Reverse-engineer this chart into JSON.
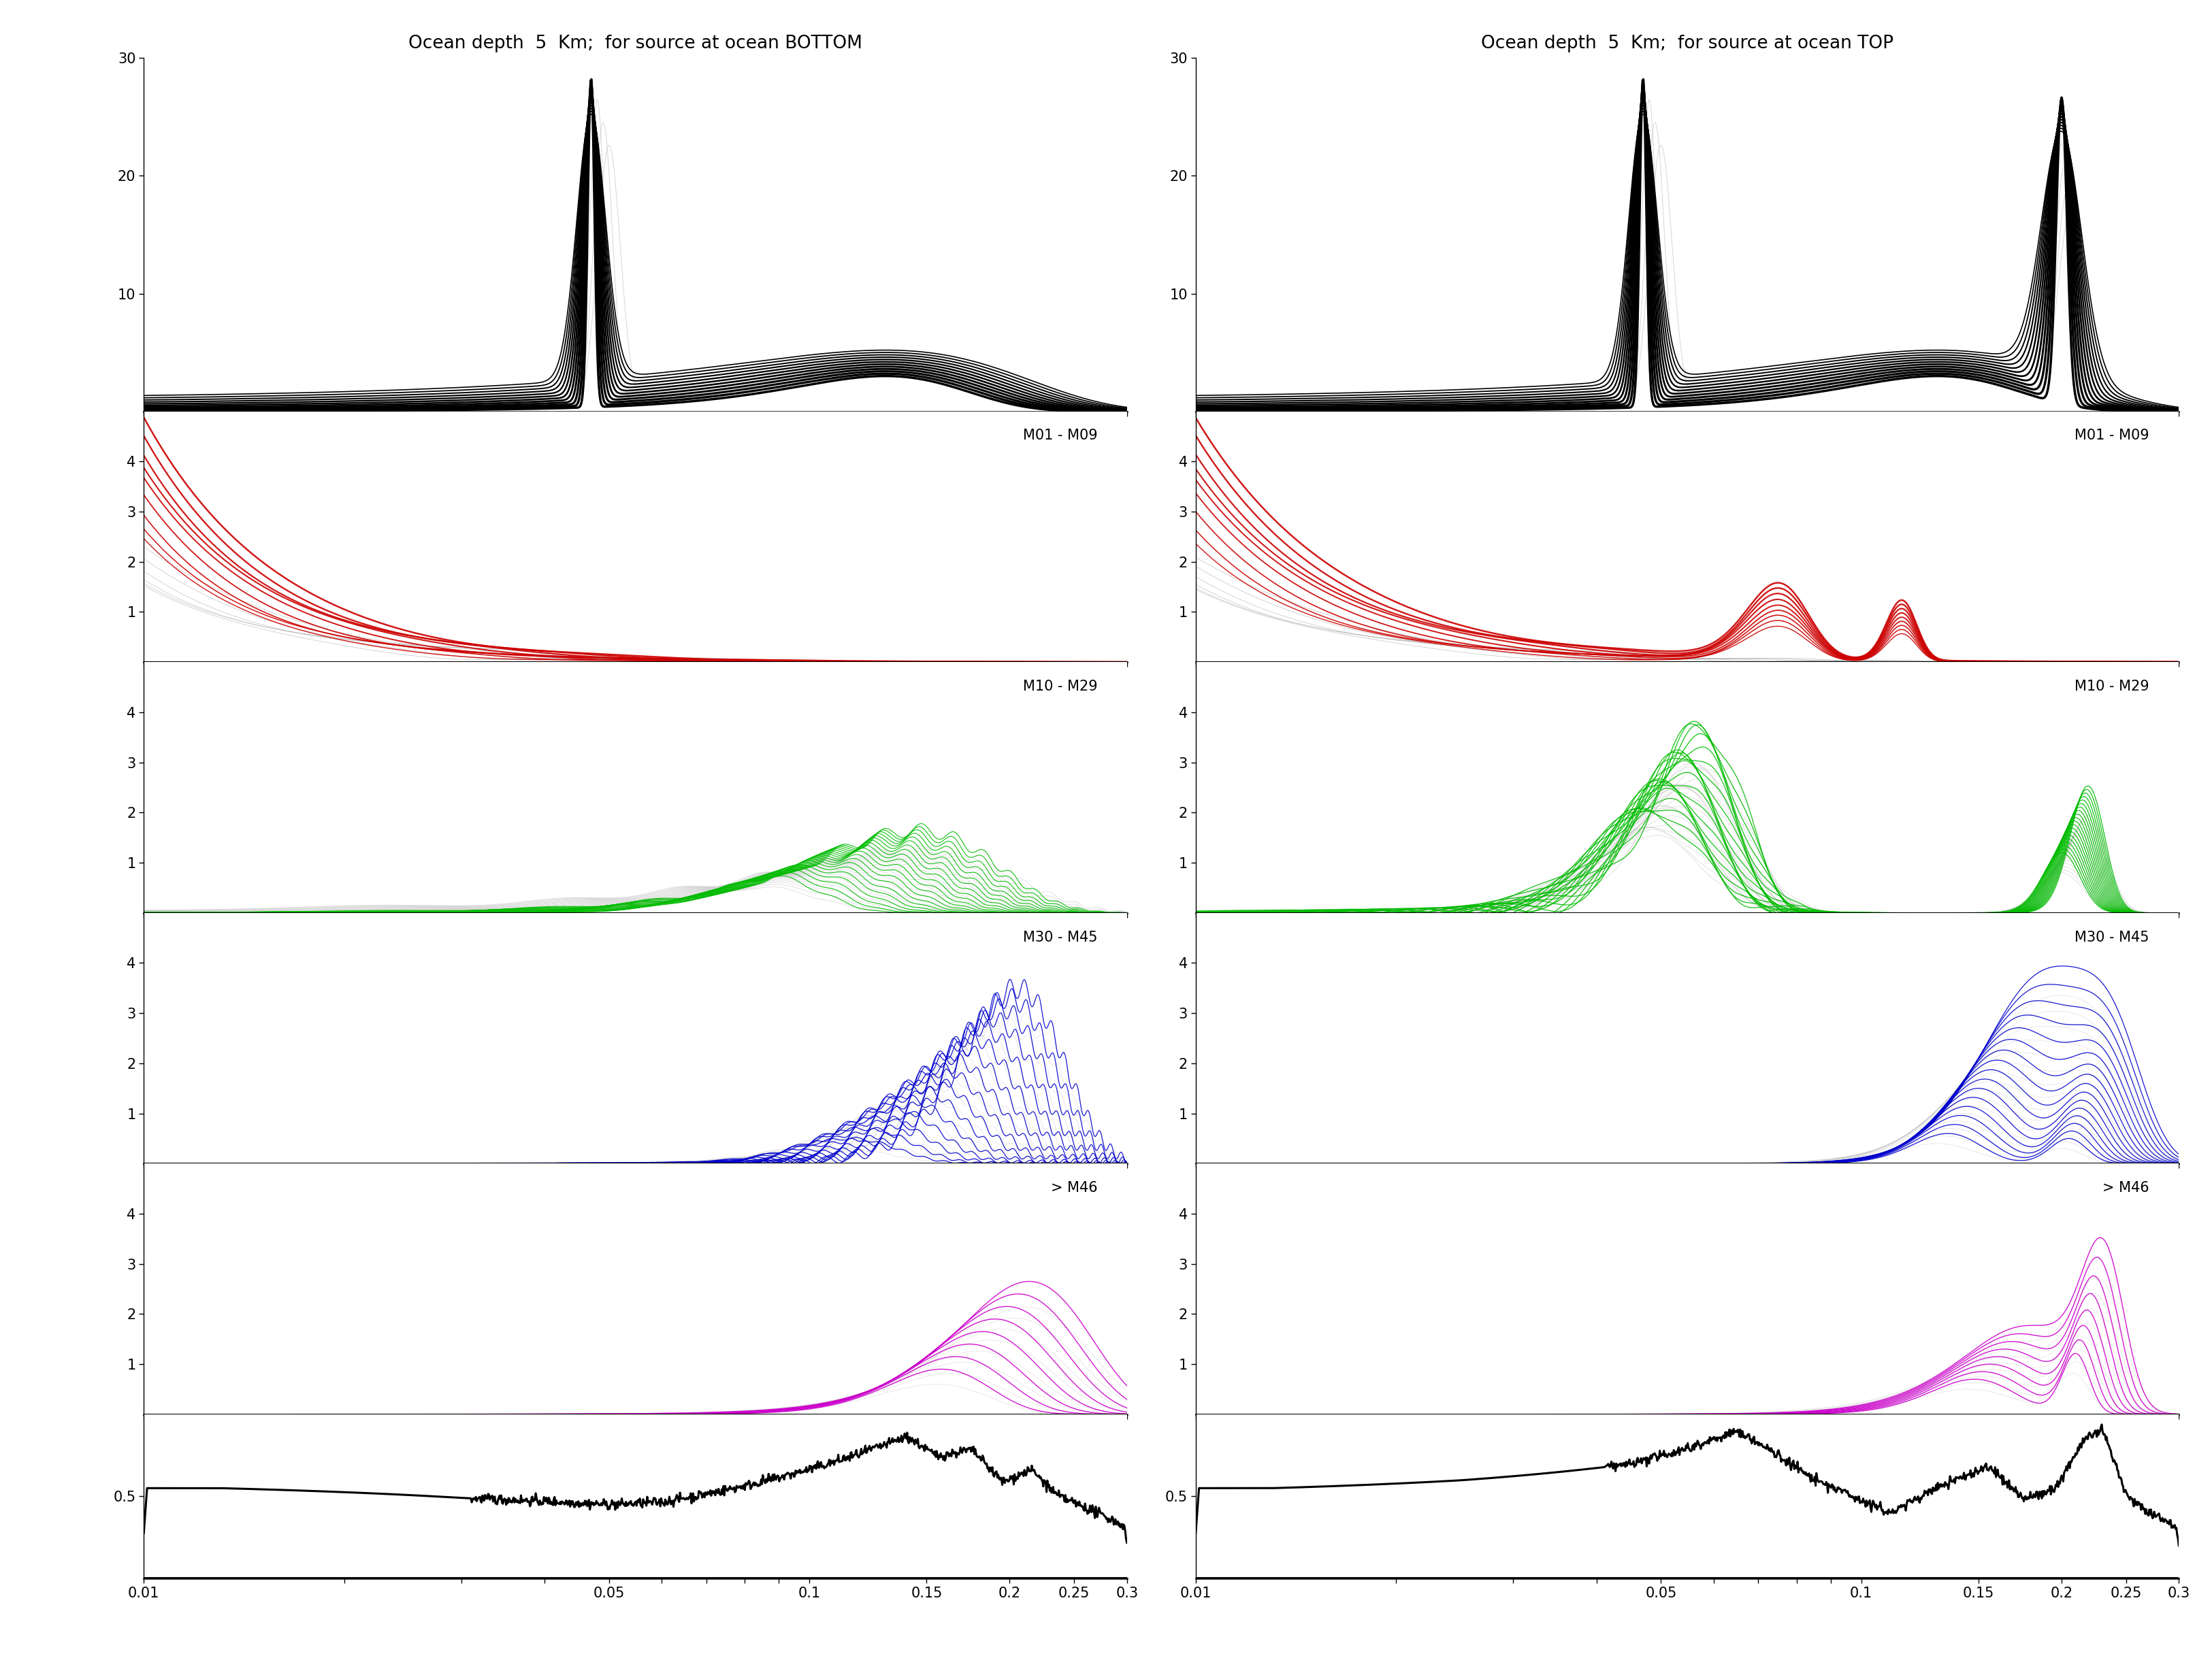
{
  "title_left": "Ocean depth  5  Km;  for source at ocean BOTTOM",
  "title_right": "Ocean depth  5  Km;  for source at ocean TOP",
  "xmin": 0.01,
  "xmax": 0.3,
  "panel0_ylim": [
    0,
    30
  ],
  "panel0_yticks": [
    10,
    20,
    30
  ],
  "panel1_ylim": [
    0,
    5
  ],
  "panel1_yticks": [
    1,
    2,
    3,
    4
  ],
  "panel2_ylim": [
    0,
    5
  ],
  "panel2_yticks": [
    1,
    2,
    3,
    4
  ],
  "panel3_ylim": [
    0,
    5
  ],
  "panel3_yticks": [
    1,
    2,
    3,
    4
  ],
  "panel4_ylim": [
    0,
    5
  ],
  "panel4_yticks": [
    1,
    2,
    3,
    4
  ],
  "panel5_ylim": [
    0,
    1
  ],
  "panel5_yticks": [
    0.5
  ],
  "label1": "M01 - M09",
  "label2": "M10 - M29",
  "label3": "M30 - M45",
  "label4": "> M46",
  "color_black": "#000000",
  "color_gray": "#aaaaaa"
}
